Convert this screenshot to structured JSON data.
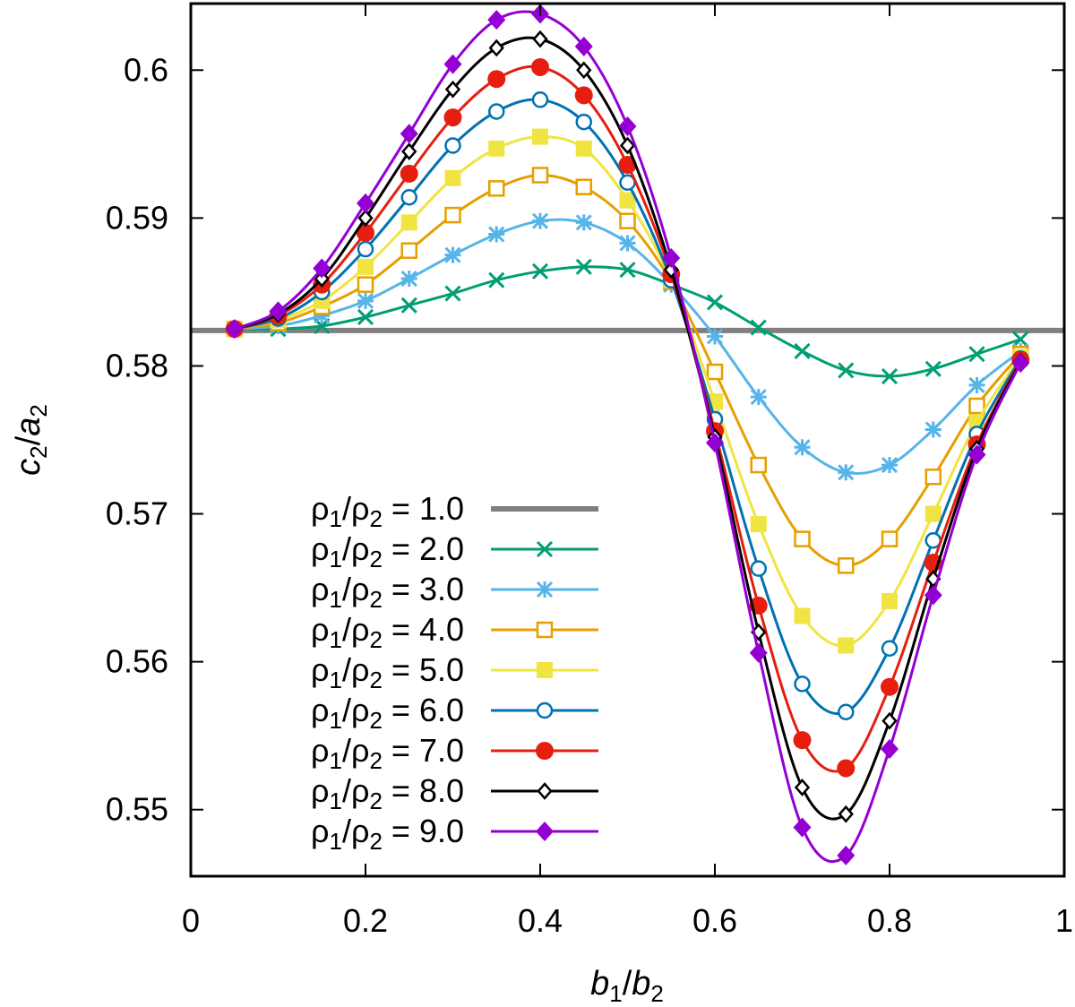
{
  "chart_data": {
    "type": "line",
    "title": "",
    "xlabel": {
      "main": "b",
      "sub1": "1",
      "slash": "/",
      "main2": "b",
      "sub2": "2"
    },
    "ylabel": {
      "main": "c",
      "sub1": "2",
      "slash": "/",
      "main2": "a",
      "sub2": "2"
    },
    "xlim": [
      0,
      1
    ],
    "ylim": [
      0.5455,
      0.6045
    ],
    "xticks": [
      0,
      0.2,
      0.4,
      0.6,
      0.8,
      1
    ],
    "xtick_labels": [
      "0",
      "0.2",
      "0.4",
      "0.6",
      "0.8",
      "1"
    ],
    "yticks": [
      0.55,
      0.56,
      0.57,
      0.58,
      0.59,
      0.6
    ],
    "ytick_labels": [
      "0.55",
      "0.56",
      "0.57",
      "0.58",
      "0.59",
      "0.6"
    ],
    "grid": false,
    "legend_placement": "lower-left",
    "x": [
      0.05,
      0.1,
      0.15,
      0.2,
      0.25,
      0.3,
      0.35,
      0.4,
      0.45,
      0.5,
      0.55,
      0.6,
      0.65,
      0.7,
      0.75,
      0.8,
      0.85,
      0.9,
      0.95
    ],
    "series": [
      {
        "name": "1.0",
        "color": "#808080",
        "marker": "none",
        "constant": 0.5824
      },
      {
        "name": "2.0",
        "color": "#009e73",
        "marker": "x",
        "values": [
          0.5825,
          0.5825,
          0.5827,
          0.5833,
          0.5841,
          0.5849,
          0.5858,
          0.5864,
          0.5867,
          0.5865,
          0.5855,
          0.5843,
          0.5826,
          0.581,
          0.5797,
          0.5793,
          0.5798,
          0.5808,
          0.5818
        ]
      },
      {
        "name": "3.0",
        "color": "#56b4e9",
        "marker": "asterisk",
        "values": [
          0.5825,
          0.5827,
          0.5834,
          0.5844,
          0.5859,
          0.5875,
          0.5889,
          0.5898,
          0.5897,
          0.5883,
          0.5855,
          0.582,
          0.5779,
          0.5745,
          0.5728,
          0.5733,
          0.5757,
          0.5787,
          0.581
        ]
      },
      {
        "name": "4.0",
        "color": "#e69f00",
        "marker": "open-square",
        "values": [
          0.5825,
          0.5829,
          0.584,
          0.5855,
          0.5878,
          0.5902,
          0.592,
          0.5929,
          0.5921,
          0.5898,
          0.5857,
          0.5796,
          0.5733,
          0.5683,
          0.5665,
          0.5683,
          0.5725,
          0.5773,
          0.5808
        ]
      },
      {
        "name": "5.0",
        "color": "#f0e442",
        "marker": "filled-square",
        "values": [
          0.5825,
          0.5831,
          0.5844,
          0.5867,
          0.5897,
          0.5927,
          0.5947,
          0.5955,
          0.5947,
          0.5912,
          0.5858,
          0.5776,
          0.5693,
          0.5631,
          0.5611,
          0.5641,
          0.57,
          0.5762,
          0.5806
        ]
      },
      {
        "name": "6.0",
        "color": "#0072b2",
        "marker": "open-circle",
        "values": [
          0.5825,
          0.5832,
          0.585,
          0.5879,
          0.5914,
          0.5949,
          0.5972,
          0.598,
          0.5965,
          0.5924,
          0.5858,
          0.5764,
          0.5663,
          0.5585,
          0.5566,
          0.5609,
          0.5682,
          0.5754,
          0.5805
        ]
      },
      {
        "name": "7.0",
        "color": "#e51e10",
        "marker": "filled-circle",
        "values": [
          0.5825,
          0.5834,
          0.5855,
          0.589,
          0.593,
          0.5968,
          0.5994,
          0.6002,
          0.5983,
          0.5936,
          0.5862,
          0.5756,
          0.5638,
          0.5547,
          0.5528,
          0.5583,
          0.5667,
          0.5747,
          0.5804
        ]
      },
      {
        "name": "8.0",
        "color": "#000000",
        "marker": "open-diamond",
        "values": [
          0.5825,
          0.5835,
          0.5859,
          0.59,
          0.5945,
          0.5987,
          0.6015,
          0.6021,
          0.6,
          0.5949,
          0.5865,
          0.5752,
          0.562,
          0.5515,
          0.5497,
          0.556,
          0.5656,
          0.5744,
          0.5803
        ]
      },
      {
        "name": "9.0",
        "color": "#9400d3",
        "marker": "filled-diamond",
        "values": [
          0.5825,
          0.5837,
          0.5866,
          0.591,
          0.5957,
          0.6004,
          0.6034,
          0.6038,
          0.6016,
          0.5962,
          0.5873,
          0.5748,
          0.5606,
          0.5488,
          0.5469,
          0.5541,
          0.5645,
          0.574,
          0.5802
        ]
      }
    ],
    "legend_prefix": {
      "rho1_main": "ρ",
      "rho1_sub": "1",
      "slash": "/",
      "rho2_main": "ρ",
      "rho2_sub": "2",
      "eq": "="
    }
  }
}
